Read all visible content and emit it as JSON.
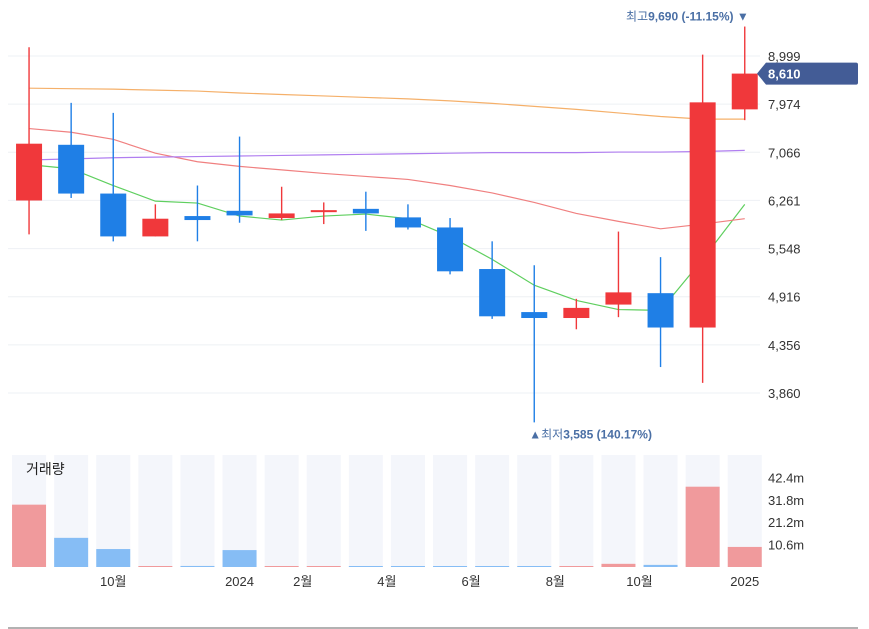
{
  "chart_data": {
    "type": "candlestick",
    "colors": {
      "up": "#f0383b",
      "down": "#1f7fe6",
      "vol_up": "#f09a9c",
      "vol_down": "#86bdf5",
      "vol_bg": "#f4f6fb",
      "ma_green": "#5fcf5f",
      "ma_red": "#f08080",
      "ma_purple": "#b07ef0",
      "ma_orange": "#f5b06a",
      "tag_bg": "#435c96",
      "annotation": "#4a6fa5"
    },
    "y_axis": {
      "ticks": [
        "8,999",
        "7,974",
        "7,066",
        "6,261",
        "5,548",
        "4,916",
        "4,356",
        "3,860"
      ],
      "tick_values": [
        8999,
        7974,
        7066,
        6261,
        5548,
        4916,
        4356,
        3860
      ],
      "scale": "log"
    },
    "x_axis": {
      "labels": [
        {
          "index": 2,
          "text": "10월"
        },
        {
          "index": 5,
          "text": "2024"
        },
        {
          "index": 6.5,
          "text": "2월"
        },
        {
          "index": 8.5,
          "text": "4월"
        },
        {
          "index": 10.5,
          "text": "6월"
        },
        {
          "index": 12.5,
          "text": "8월"
        },
        {
          "index": 14.5,
          "text": "10월"
        },
        {
          "index": 17,
          "text": "2025"
        }
      ]
    },
    "candles": [
      {
        "open": 6260,
        "high": 9200,
        "low": 5750,
        "close": 7220
      },
      {
        "open": 7200,
        "high": 8000,
        "low": 6300,
        "close": 6370
      },
      {
        "open": 6370,
        "high": 7800,
        "low": 5650,
        "close": 5720
      },
      {
        "open": 5720,
        "high": 6200,
        "low": 5720,
        "close": 5980
      },
      {
        "open": 6020,
        "high": 6500,
        "low": 5650,
        "close": 5960
      },
      {
        "open": 6100,
        "high": 7350,
        "low": 5920,
        "close": 6030
      },
      {
        "open": 5990,
        "high": 6480,
        "low": 5960,
        "close": 6060
      },
      {
        "open": 6080,
        "high": 6230,
        "low": 5900,
        "close": 6110
      },
      {
        "open": 6130,
        "high": 6400,
        "low": 5800,
        "close": 6060
      },
      {
        "open": 6000,
        "high": 6200,
        "low": 5820,
        "close": 5850
      },
      {
        "open": 5850,
        "high": 5990,
        "low": 5200,
        "close": 5240
      },
      {
        "open": 5270,
        "high": 5650,
        "low": 4650,
        "close": 4680
      },
      {
        "open": 4730,
        "high": 5320,
        "low": 3585,
        "close": 4660
      },
      {
        "open": 4660,
        "high": 4890,
        "low": 4530,
        "close": 4780
      },
      {
        "open": 4820,
        "high": 5790,
        "low": 4670,
        "close": 4970
      },
      {
        "open": 4960,
        "high": 5430,
        "low": 4120,
        "close": 4550
      },
      {
        "open": 4550,
        "high": 9030,
        "low": 3960,
        "close": 8010
      },
      {
        "open": 7870,
        "high": 9690,
        "low": 7660,
        "close": 8610
      }
    ],
    "volume": {
      "title": "거래량",
      "ticks": [
        "42.4m",
        "31.8m",
        "21.2m",
        "10.6m"
      ],
      "tick_values": [
        42.4,
        31.8,
        21.2,
        10.6
      ],
      "max": 53,
      "values": [
        29.5,
        13.8,
        8.5,
        0.3,
        0.5,
        8.0,
        0.2,
        0.2,
        0.2,
        0.2,
        0.4,
        0.2,
        0.4,
        0.1,
        1.5,
        1.0,
        38.0,
        9.5
      ]
    },
    "moving_averages": [
      {
        "key": "ma_green",
        "values": [
          6850,
          6780,
          6500,
          6250,
          6220,
          6020,
          5960,
          6020,
          6050,
          5980,
          5720,
          5400,
          5060,
          4870,
          4760,
          4750,
          5400,
          6200
        ]
      },
      {
        "key": "ma_red",
        "values": [
          7500,
          7430,
          7300,
          7050,
          6900,
          6820,
          6760,
          6700,
          6650,
          6600,
          6500,
          6380,
          6230,
          6060,
          5940,
          5830,
          5900,
          5980
        ]
      },
      {
        "key": "ma_purple",
        "values": [
          6930,
          6950,
          6970,
          6980,
          6990,
          7000,
          7010,
          7020,
          7030,
          7040,
          7050,
          7060,
          7060,
          7060,
          7070,
          7070,
          7080,
          7100
        ]
      },
      {
        "key": "ma_orange",
        "values": [
          8300,
          8290,
          8280,
          8260,
          8240,
          8200,
          8170,
          8140,
          8110,
          8080,
          8040,
          7990,
          7930,
          7870,
          7800,
          7730,
          7680,
          7680
        ]
      }
    ],
    "annotations": {
      "high": {
        "label": "최고",
        "value": "9,690 (-11.15%)",
        "marker": "▼",
        "price": 9690,
        "index": 17
      },
      "low": {
        "label": "최저",
        "value": "3,585 (140.17%)",
        "marker": "▲",
        "price": 3585,
        "index": 12
      }
    },
    "current_price": {
      "value": 8610,
      "label": "8,610"
    }
  }
}
